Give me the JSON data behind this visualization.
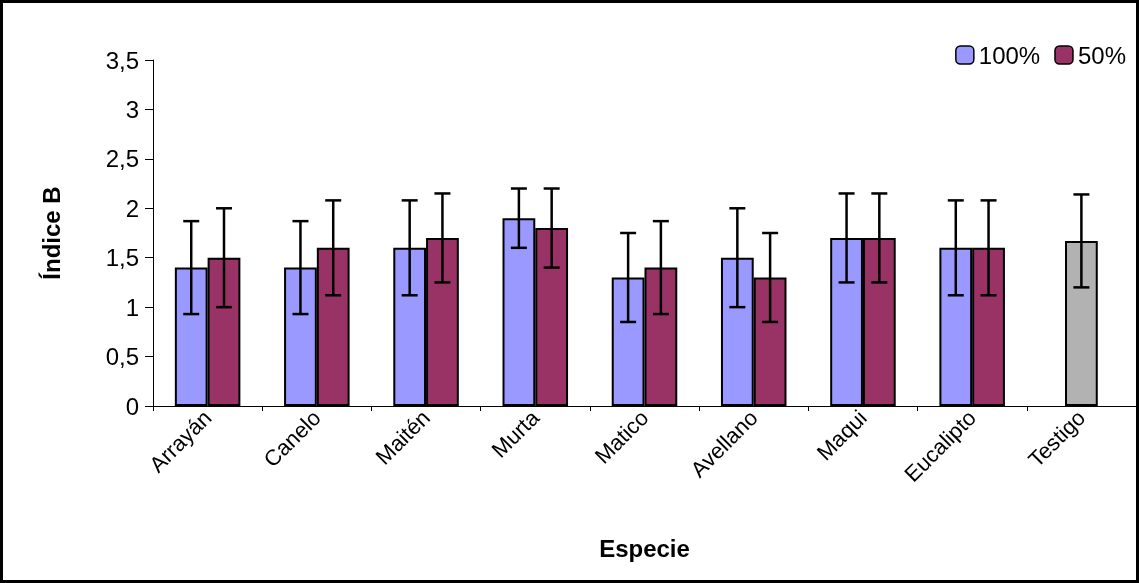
{
  "chart_data": {
    "type": "bar",
    "xlabel": "Especie",
    "ylabel": "Índice B",
    "categories": [
      "Arrayán",
      "Canelo",
      "Maitén",
      "Murta",
      "Matico",
      "Avellano",
      "Maqui",
      "Eucalipto",
      "Testigo"
    ],
    "series": [
      {
        "name": "100%",
        "color": "#9999ff",
        "values": [
          1.4,
          1.4,
          1.6,
          1.9,
          1.3,
          1.5,
          1.7,
          1.6,
          null
        ],
        "errors": [
          0.47,
          0.47,
          0.48,
          0.3,
          0.45,
          0.5,
          0.45,
          0.48,
          null
        ]
      },
      {
        "name": "50%",
        "color": "#993366",
        "values": [
          1.5,
          1.6,
          1.7,
          1.8,
          1.4,
          1.3,
          1.7,
          1.6,
          null
        ],
        "errors": [
          0.5,
          0.48,
          0.45,
          0.4,
          0.47,
          0.45,
          0.45,
          0.48,
          null
        ]
      },
      {
        "color": "#b2b2b2",
        "values": [
          null,
          null,
          null,
          null,
          null,
          null,
          null,
          null,
          1.67
        ],
        "errors": [
          null,
          null,
          null,
          null,
          null,
          null,
          null,
          null,
          0.47
        ]
      }
    ],
    "ylim": [
      0,
      3.5
    ],
    "yticks": [
      0,
      {
        "value": 0.5,
        "label": "0,5"
      },
      1,
      {
        "value": 1.5,
        "label": "1,5"
      },
      2,
      {
        "value": 2.5,
        "label": "2,5"
      },
      3,
      {
        "value": 3.5,
        "label": "3,5"
      }
    ],
    "grid": false,
    "legend": "top right"
  }
}
